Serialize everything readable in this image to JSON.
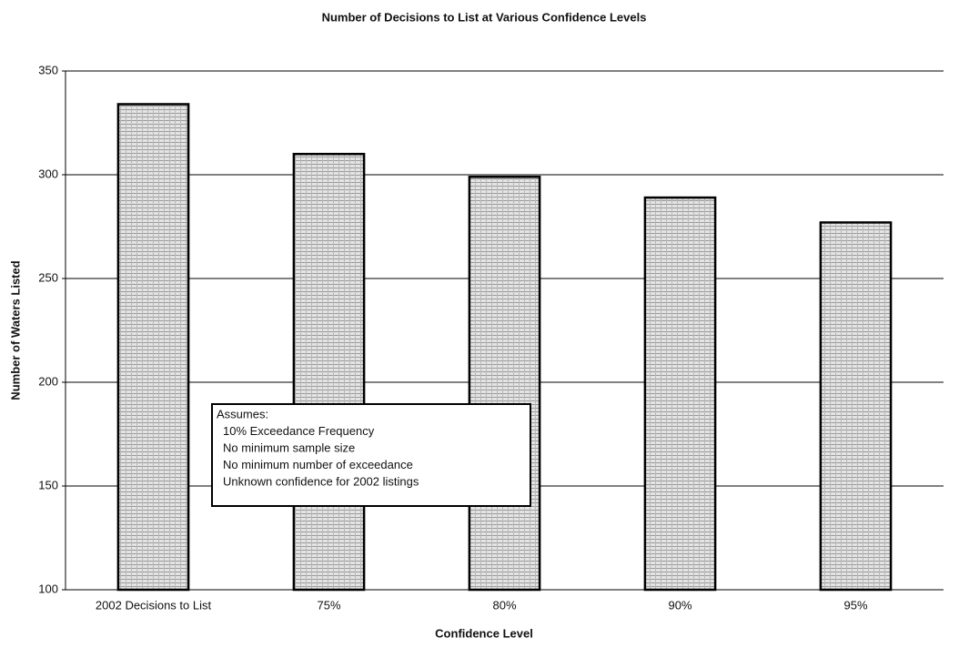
{
  "chart_data": {
    "type": "bar",
    "title": "Number of Decisions to List at Various Confidence Levels",
    "x_label": "Confidence Level",
    "y_label": "Number of Waters Listed",
    "categories": [
      "2002 Decisions to List",
      "75%",
      "80%",
      "90%",
      "95%"
    ],
    "values": [
      334,
      310,
      299,
      289,
      277
    ],
    "color": "#c8c8c8",
    "ylim": [
      100,
      350
    ],
    "yticks": [
      100,
      150,
      200,
      250,
      300,
      350
    ],
    "grid": true,
    "annotations": [
      "Assumes:",
      "10% Exceedance Frequency",
      "No minimum sample size",
      "No minimum number of exceedance",
      "Unknown confidence for 2002 listings"
    ]
  }
}
